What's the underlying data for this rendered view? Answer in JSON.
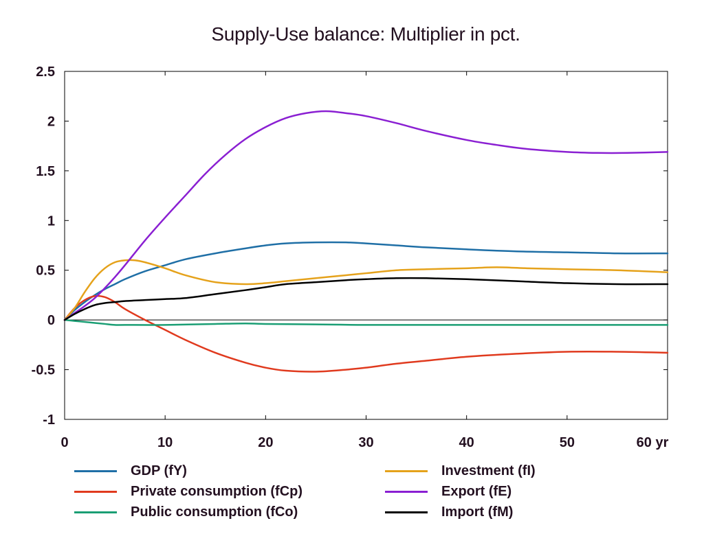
{
  "chart_data": {
    "type": "line",
    "title": "Supply-Use balance: Multiplier in pct.",
    "x_tick_labels": [
      "0",
      "10",
      "20",
      "30",
      "40",
      "50",
      "60 yr"
    ],
    "x_ticks": [
      0,
      10,
      20,
      30,
      40,
      50,
      60
    ],
    "xlim": [
      0,
      60
    ],
    "y_tick_labels": [
      "2.5",
      "2",
      "1.5",
      "1",
      "0.5",
      "0",
      "-0.5",
      "-1"
    ],
    "y_ticks": [
      2.5,
      2,
      1.5,
      1,
      0.5,
      0,
      -0.5,
      -1
    ],
    "ylim": [
      -1,
      2.5
    ],
    "grid": false,
    "legend_position": "bottom",
    "zero_line": true,
    "series": [
      {
        "name": "GDP (fY)",
        "color": "#1f6fa6",
        "points": [
          [
            0,
            0
          ],
          [
            1,
            0.1
          ],
          [
            2,
            0.18
          ],
          [
            3,
            0.25
          ],
          [
            4,
            0.31
          ],
          [
            5,
            0.36
          ],
          [
            6,
            0.41
          ],
          [
            8,
            0.49
          ],
          [
            10,
            0.55
          ],
          [
            12,
            0.61
          ],
          [
            15,
            0.67
          ],
          [
            18,
            0.72
          ],
          [
            20,
            0.75
          ],
          [
            22,
            0.77
          ],
          [
            25,
            0.78
          ],
          [
            28,
            0.78
          ],
          [
            30,
            0.77
          ],
          [
            33,
            0.75
          ],
          [
            36,
            0.73
          ],
          [
            40,
            0.71
          ],
          [
            45,
            0.69
          ],
          [
            50,
            0.68
          ],
          [
            55,
            0.67
          ],
          [
            60,
            0.67
          ]
        ]
      },
      {
        "name": "Private consumption (fCp)",
        "color": "#e03a1e",
        "points": [
          [
            0,
            0
          ],
          [
            1,
            0.12
          ],
          [
            2,
            0.2
          ],
          [
            3,
            0.24
          ],
          [
            4,
            0.23
          ],
          [
            5,
            0.18
          ],
          [
            6,
            0.11
          ],
          [
            8,
            0.0
          ],
          [
            10,
            -0.1
          ],
          [
            12,
            -0.2
          ],
          [
            15,
            -0.33
          ],
          [
            18,
            -0.43
          ],
          [
            20,
            -0.48
          ],
          [
            22,
            -0.51
          ],
          [
            25,
            -0.52
          ],
          [
            28,
            -0.5
          ],
          [
            30,
            -0.48
          ],
          [
            33,
            -0.44
          ],
          [
            36,
            -0.41
          ],
          [
            40,
            -0.37
          ],
          [
            45,
            -0.34
          ],
          [
            50,
            -0.32
          ],
          [
            55,
            -0.32
          ],
          [
            60,
            -0.33
          ]
        ]
      },
      {
        "name": "Public consumption (fCo)",
        "color": "#1a9e74",
        "points": [
          [
            0,
            0
          ],
          [
            1,
            -0.01
          ],
          [
            2,
            -0.02
          ],
          [
            3,
            -0.03
          ],
          [
            4,
            -0.04
          ],
          [
            5,
            -0.05
          ],
          [
            6,
            -0.05
          ],
          [
            10,
            -0.05
          ],
          [
            15,
            -0.04
          ],
          [
            18,
            -0.035
          ],
          [
            20,
            -0.04
          ],
          [
            25,
            -0.045
          ],
          [
            30,
            -0.05
          ],
          [
            40,
            -0.05
          ],
          [
            50,
            -0.05
          ],
          [
            60,
            -0.05
          ]
        ]
      },
      {
        "name": "Investment (fI)",
        "color": "#e5a21b",
        "points": [
          [
            0,
            0
          ],
          [
            1,
            0.12
          ],
          [
            2,
            0.28
          ],
          [
            3,
            0.42
          ],
          [
            4,
            0.52
          ],
          [
            5,
            0.58
          ],
          [
            6,
            0.6
          ],
          [
            7,
            0.6
          ],
          [
            8,
            0.58
          ],
          [
            10,
            0.52
          ],
          [
            12,
            0.45
          ],
          [
            15,
            0.38
          ],
          [
            18,
            0.36
          ],
          [
            20,
            0.37
          ],
          [
            22,
            0.39
          ],
          [
            25,
            0.42
          ],
          [
            28,
            0.45
          ],
          [
            30,
            0.47
          ],
          [
            33,
            0.5
          ],
          [
            36,
            0.51
          ],
          [
            40,
            0.52
          ],
          [
            43,
            0.53
          ],
          [
            46,
            0.52
          ],
          [
            50,
            0.51
          ],
          [
            55,
            0.5
          ],
          [
            60,
            0.48
          ]
        ]
      },
      {
        "name": "Export (fE)",
        "color": "#8a1fd2",
        "points": [
          [
            0,
            0
          ],
          [
            1,
            0.07
          ],
          [
            2,
            0.14
          ],
          [
            3,
            0.22
          ],
          [
            4,
            0.32
          ],
          [
            5,
            0.43
          ],
          [
            6,
            0.55
          ],
          [
            8,
            0.8
          ],
          [
            10,
            1.03
          ],
          [
            12,
            1.25
          ],
          [
            14,
            1.47
          ],
          [
            16,
            1.66
          ],
          [
            18,
            1.82
          ],
          [
            20,
            1.94
          ],
          [
            22,
            2.03
          ],
          [
            24,
            2.08
          ],
          [
            26,
            2.1
          ],
          [
            28,
            2.08
          ],
          [
            30,
            2.05
          ],
          [
            33,
            1.98
          ],
          [
            36,
            1.9
          ],
          [
            40,
            1.81
          ],
          [
            43,
            1.76
          ],
          [
            46,
            1.72
          ],
          [
            50,
            1.69
          ],
          [
            53,
            1.68
          ],
          [
            56,
            1.68
          ],
          [
            60,
            1.69
          ]
        ]
      },
      {
        "name": "Import (fM)",
        "color": "#000000",
        "points": [
          [
            0,
            0
          ],
          [
            1,
            0.06
          ],
          [
            2,
            0.11
          ],
          [
            3,
            0.15
          ],
          [
            4,
            0.17
          ],
          [
            5,
            0.18
          ],
          [
            6,
            0.19
          ],
          [
            8,
            0.2
          ],
          [
            10,
            0.21
          ],
          [
            12,
            0.22
          ],
          [
            15,
            0.26
          ],
          [
            18,
            0.3
          ],
          [
            20,
            0.33
          ],
          [
            22,
            0.36
          ],
          [
            25,
            0.38
          ],
          [
            28,
            0.4
          ],
          [
            30,
            0.41
          ],
          [
            33,
            0.42
          ],
          [
            36,
            0.42
          ],
          [
            40,
            0.41
          ],
          [
            45,
            0.39
          ],
          [
            50,
            0.37
          ],
          [
            55,
            0.36
          ],
          [
            60,
            0.36
          ]
        ]
      }
    ]
  }
}
